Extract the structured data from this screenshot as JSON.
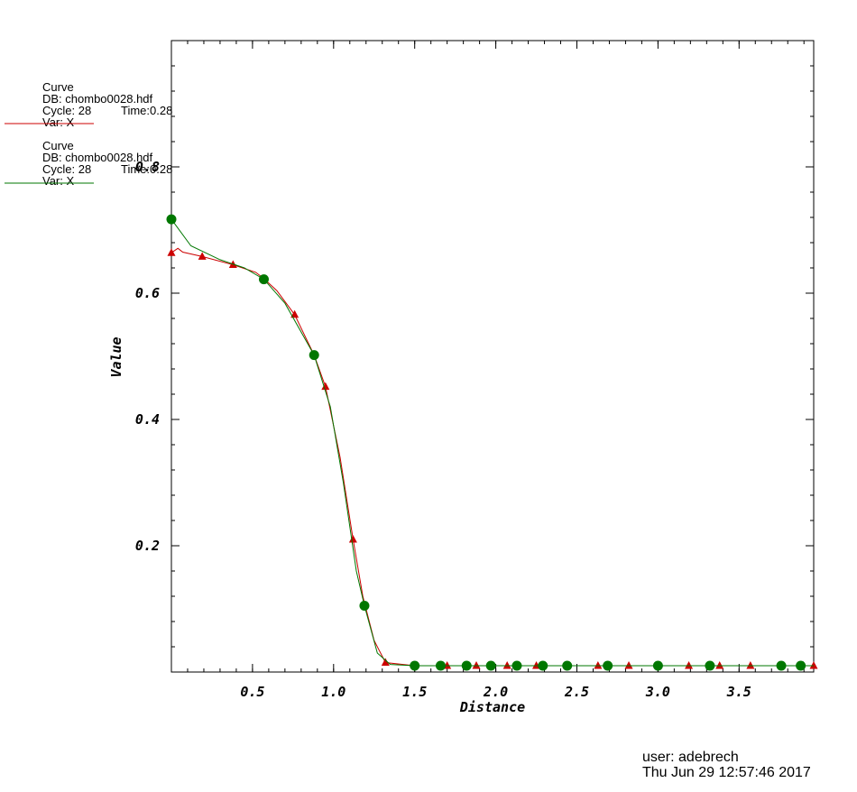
{
  "chart_data": {
    "type": "line",
    "xlabel": "Distance",
    "ylabel": "Value",
    "xlim": [
      0.0,
      3.96
    ],
    "ylim": [
      0.0,
      1.0
    ],
    "x_ticks": [
      0.5,
      1.0,
      1.5,
      2.0,
      2.5,
      3.0,
      3.5
    ],
    "x_tick_labels": [
      "0.5",
      "1.0",
      "1.5",
      "2.0",
      "2.5",
      "3.0",
      "3.5"
    ],
    "y_ticks": [
      0.2,
      0.4,
      0.6,
      0.8
    ],
    "y_tick_labels": [
      "0.2",
      "0.4",
      "0.6",
      "0.8"
    ],
    "grid": false,
    "series": [
      {
        "name": "Var: X",
        "color": "#cc0000",
        "marker": "triangle",
        "points": [
          [
            0.0,
            0.664
          ],
          [
            0.04,
            0.671
          ],
          [
            0.07,
            0.665
          ],
          [
            0.19,
            0.658
          ],
          [
            0.38,
            0.645
          ],
          [
            0.52,
            0.633
          ],
          [
            0.57,
            0.623
          ],
          [
            0.65,
            0.604
          ],
          [
            0.76,
            0.566
          ],
          [
            0.88,
            0.502
          ],
          [
            0.95,
            0.452
          ],
          [
            1.04,
            0.34
          ],
          [
            1.12,
            0.21
          ],
          [
            1.18,
            0.12
          ],
          [
            1.25,
            0.05
          ],
          [
            1.32,
            0.015
          ],
          [
            1.5,
            0.01
          ],
          [
            1.7,
            0.01
          ],
          [
            1.88,
            0.01
          ],
          [
            2.07,
            0.01
          ],
          [
            2.25,
            0.01
          ],
          [
            2.63,
            0.01
          ],
          [
            2.82,
            0.01
          ],
          [
            3.19,
            0.01
          ],
          [
            3.38,
            0.01
          ],
          [
            3.57,
            0.01
          ],
          [
            3.96,
            0.01
          ]
        ],
        "marker_x": [
          0.0,
          0.19,
          0.38,
          0.76,
          0.95,
          1.12,
          1.32,
          1.7,
          1.88,
          2.07,
          2.25,
          2.63,
          2.82,
          3.19,
          3.38,
          3.57,
          3.96
        ]
      },
      {
        "name": "Var: X",
        "color": "#007700",
        "marker": "circle",
        "points": [
          [
            0.0,
            0.717
          ],
          [
            0.12,
            0.675
          ],
          [
            0.3,
            0.653
          ],
          [
            0.45,
            0.64
          ],
          [
            0.57,
            0.622
          ],
          [
            0.7,
            0.584
          ],
          [
            0.88,
            0.502
          ],
          [
            0.98,
            0.42
          ],
          [
            1.06,
            0.3
          ],
          [
            1.14,
            0.16
          ],
          [
            1.19,
            0.105
          ],
          [
            1.27,
            0.03
          ],
          [
            1.35,
            0.012
          ],
          [
            1.5,
            0.01
          ],
          [
            1.66,
            0.01
          ],
          [
            1.82,
            0.01
          ],
          [
            1.97,
            0.01
          ],
          [
            2.13,
            0.01
          ],
          [
            2.29,
            0.01
          ],
          [
            2.44,
            0.01
          ],
          [
            2.69,
            0.01
          ],
          [
            3.0,
            0.01
          ],
          [
            3.32,
            0.01
          ],
          [
            3.76,
            0.01
          ],
          [
            3.88,
            0.01
          ],
          [
            3.96,
            0.01
          ]
        ],
        "marker_x": [
          0.0,
          0.57,
          0.88,
          1.19,
          1.5,
          1.66,
          1.82,
          1.97,
          2.13,
          2.29,
          2.44,
          2.69,
          3.0,
          3.32,
          3.76,
          3.88
        ]
      }
    ]
  },
  "legend": [
    {
      "title": "Curve",
      "db": "DB: chombo0028.hdf",
      "cycle": "Cycle: 28",
      "time": "Time:0.28",
      "var": "Var: X",
      "color": "#cc0000"
    },
    {
      "title": "Curve",
      "db": "DB: chombo0028.hdf",
      "cycle": "Cycle: 28",
      "time": "Time:0.28",
      "var": "Var: X",
      "color": "#007700"
    }
  ],
  "footer": {
    "user": "user: adebrech",
    "date": "Thu Jun 29 12:57:46 2017"
  }
}
